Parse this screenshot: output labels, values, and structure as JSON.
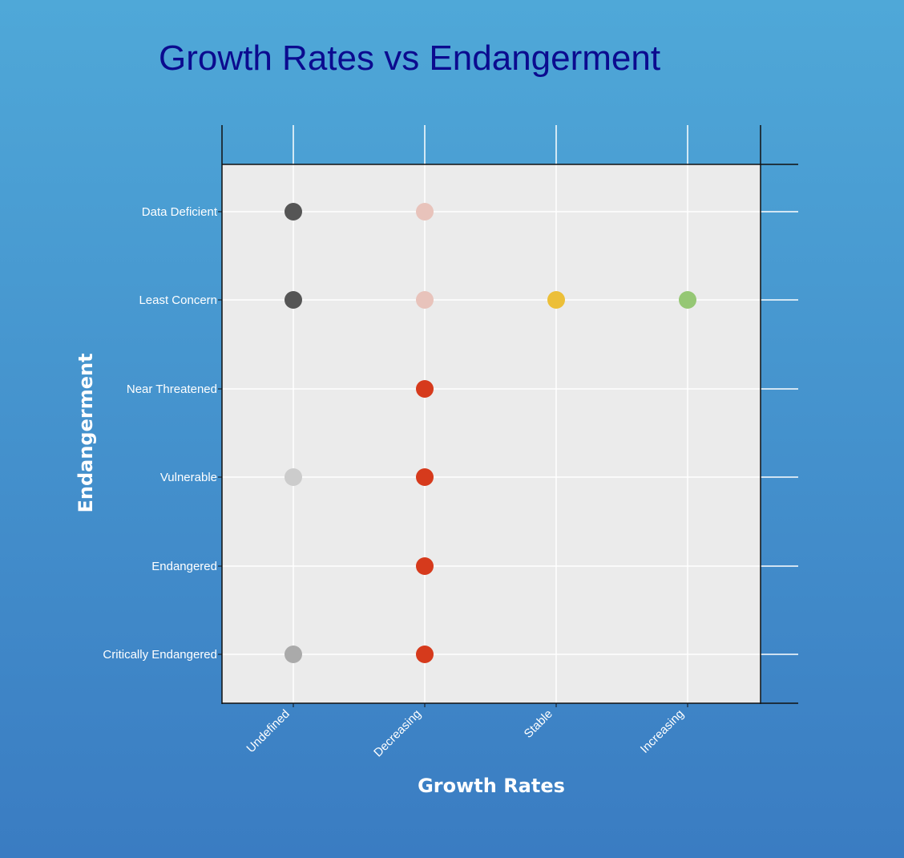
{
  "chart_data": {
    "type": "scatter",
    "title": "Growth Rates vs Endangerment",
    "xlabel": "Growth Rates",
    "ylabel": "Endangerment",
    "x_categories": [
      "Undefined",
      "Decreasing",
      "Stable",
      "Increasing"
    ],
    "y_categories": [
      "Data Deficient",
      "Least Concern",
      "Near Threatened",
      "Vulnerable",
      "Endangered",
      "Critically Endangered"
    ],
    "grid": true,
    "points": [
      {
        "x": "Undefined",
        "y": "Data Deficient",
        "color": "#555555"
      },
      {
        "x": "Undefined",
        "y": "Least Concern",
        "color": "#555555"
      },
      {
        "x": "Undefined",
        "y": "Vulnerable",
        "color": "#cccccc"
      },
      {
        "x": "Undefined",
        "y": "Critically Endangered",
        "color": "#aaaaaa"
      },
      {
        "x": "Decreasing",
        "y": "Data Deficient",
        "color": "#e8c3bb"
      },
      {
        "x": "Decreasing",
        "y": "Least Concern",
        "color": "#e8c3bb"
      },
      {
        "x": "Decreasing",
        "y": "Near Threatened",
        "color": "#d63a1c"
      },
      {
        "x": "Decreasing",
        "y": "Vulnerable",
        "color": "#d63a1c"
      },
      {
        "x": "Decreasing",
        "y": "Endangered",
        "color": "#d63a1c"
      },
      {
        "x": "Decreasing",
        "y": "Critically Endangered",
        "color": "#d63a1c"
      },
      {
        "x": "Stable",
        "y": "Least Concern",
        "color": "#ecbf38"
      },
      {
        "x": "Increasing",
        "y": "Least Concern",
        "color": "#95c774"
      }
    ]
  }
}
